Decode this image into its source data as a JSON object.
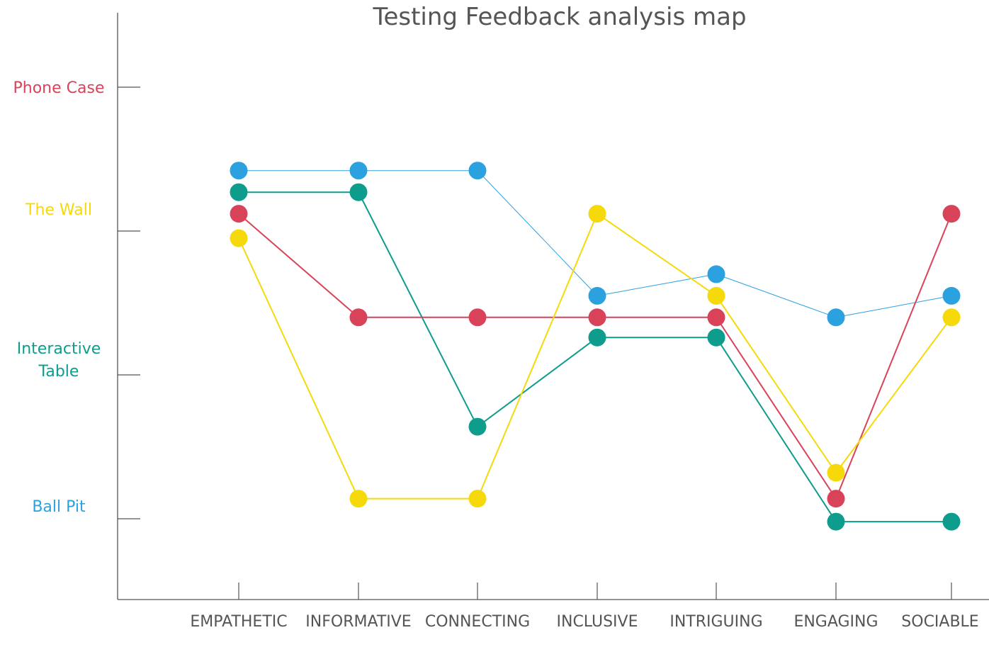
{
  "chart_data": {
    "type": "line",
    "title": "Testing Feedback analysis map",
    "categories": [
      "EMPATHETIC",
      "INFORMATIVE",
      "CONNECTING",
      "INCLUSIVE",
      "INTRIGUING",
      "ENGAGING",
      "SOCIABLE"
    ],
    "y_axis_tick_labels": [
      {
        "label": "Phone Case",
        "color": "#D9435A",
        "value": 4
      },
      {
        "label": "The Wall",
        "color": "#F5D90A",
        "value": 3
      },
      {
        "label": "Interactive Table",
        "lines": [
          "Interactive",
          "Table"
        ],
        "color": "#0E9C8C",
        "value": 2
      },
      {
        "label": "Ball Pit",
        "color": "#2CA1DF",
        "value": 1
      }
    ],
    "ylim": [
      0.48,
      4.48
    ],
    "series": [
      {
        "color": "#2CA1DF",
        "stroke_width": 1,
        "values": [
          3.42,
          3.42,
          3.42,
          2.55,
          2.7,
          2.4,
          2.55
        ]
      },
      {
        "color": "#0E9C8C",
        "stroke_width": 2,
        "values": [
          3.27,
          3.27,
          1.64,
          2.26,
          2.26,
          0.98,
          0.98
        ]
      },
      {
        "color": "#D9435A",
        "stroke_width": 2,
        "values": [
          3.12,
          2.4,
          2.4,
          2.4,
          2.4,
          1.14,
          3.12
        ]
      },
      {
        "color": "#F5D90A",
        "stroke_width": 2,
        "values": [
          2.95,
          1.14,
          1.14,
          3.12,
          2.55,
          1.32,
          2.4
        ]
      }
    ],
    "axis_color": "#555555",
    "grid": false,
    "legend": "none"
  }
}
